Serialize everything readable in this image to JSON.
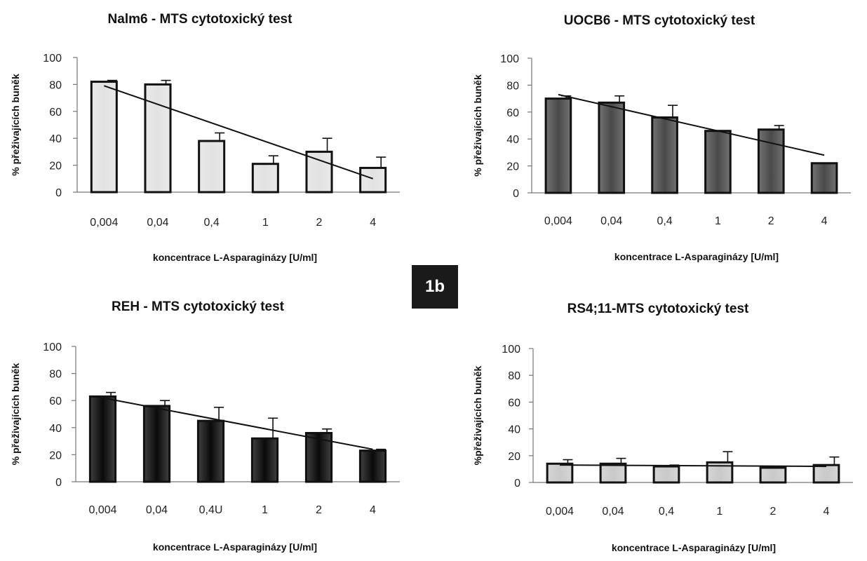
{
  "figure_label": "1b",
  "colors": {
    "nalm6_bar": "#e2e2e2",
    "uocb6_bar": "#4a4a4a",
    "reh_bar": "#0a0a0a",
    "rs411_bar": "#c9c9c9",
    "bar_edge": "#111111",
    "axis": "#777777",
    "trend_line": "#111111"
  },
  "chart_data": [
    {
      "type": "bar",
      "title": "Nalm6 - MTS cytotoxický test",
      "xlabel": "koncentrace L-Asparaginázy [U/ml]",
      "ylabel": "% přeživajících buněk",
      "categories": [
        "0,004",
        "0,04",
        "0,4",
        "1",
        "2",
        "4"
      ],
      "ylim": [
        0,
        100
      ],
      "yticks": [
        "0",
        "20",
        "40",
        "60",
        "80",
        "100"
      ],
      "series": [
        {
          "values": [
            82,
            80,
            38,
            21,
            30,
            18
          ],
          "error": [
            1,
            3,
            6,
            6,
            10,
            8
          ]
        }
      ],
      "trendline": {
        "type": "linear",
        "start": 79,
        "end": 10
      },
      "bar_color": "#e2e2e2",
      "grid": false
    },
    {
      "type": "bar",
      "title": "UOCB6 - MTS cytotoxický test",
      "xlabel": "koncentrace L-Asparaginázy [U/ml]",
      "ylabel": "% přeživajících buněk",
      "categories": [
        "0,004",
        "0,04",
        "0,4",
        "1",
        "2",
        "4"
      ],
      "ylim": [
        0,
        100
      ],
      "yticks": [
        "0",
        "20",
        "40",
        "60",
        "80",
        "100"
      ],
      "series": [
        {
          "values": [
            70,
            67,
            56,
            46,
            47,
            22
          ],
          "error": [
            2,
            5,
            9,
            0,
            3,
            0
          ]
        }
      ],
      "trendline": {
        "type": "linear",
        "start": 73,
        "end": 28
      },
      "bar_color": "#4a4a4a",
      "grid": false
    },
    {
      "type": "bar",
      "title": "REH - MTS cytotoxický test",
      "xlabel": "koncentrace L-Asparaginázy [U/ml]",
      "ylabel": "% přeživajících buněk",
      "categories": [
        "0,004",
        "0,04",
        "0,4U",
        "1",
        "2",
        "4"
      ],
      "ylim": [
        0,
        100
      ],
      "yticks": [
        "0",
        "20",
        "40",
        "60",
        "80",
        "100"
      ],
      "series": [
        {
          "values": [
            63,
            56,
            45,
            32,
            36,
            23
          ],
          "error": [
            3,
            4,
            10,
            15,
            3,
            1
          ]
        }
      ],
      "trendline": {
        "type": "linear",
        "start": 62,
        "end": 24
      },
      "bar_color": "#0a0a0a",
      "grid": false
    },
    {
      "type": "bar",
      "title": "RS4;11-MTS cytotoxický test",
      "xlabel": "koncentrace L-Asparaginázy [U/ml]",
      "ylabel": "%přeživajících buněk",
      "categories": [
        "0,004",
        "0,04",
        "0,4",
        "1",
        "2",
        "4"
      ],
      "ylim": [
        0,
        100
      ],
      "yticks": [
        "0",
        "20",
        "40",
        "60",
        "80",
        "100"
      ],
      "series": [
        {
          "values": [
            14,
            14,
            12,
            15,
            11,
            13
          ],
          "error": [
            3,
            4,
            1,
            8,
            0,
            6
          ]
        }
      ],
      "trendline": {
        "type": "linear",
        "start": 13,
        "end": 12
      },
      "bar_color": "#c9c9c9",
      "grid": false
    }
  ]
}
